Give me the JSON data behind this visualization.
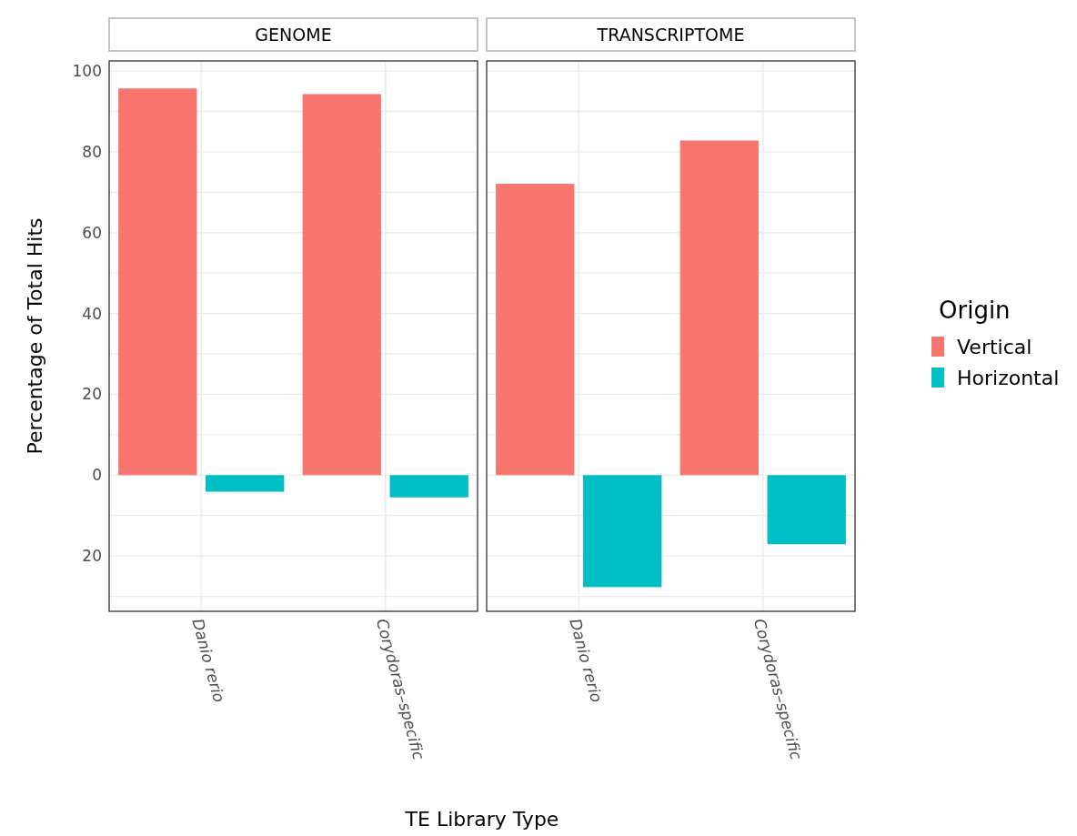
{
  "chart_data": [
    {
      "type": "bar",
      "title": "GENOME",
      "ylabel": "Percentage of Total Hits",
      "xlabel": "TE Library Type",
      "legend_title": "Origin",
      "legend": "right",
      "categories": [
        "Danio rerio",
        "Corydoras–specific"
      ],
      "series": [
        {
          "name": "Vertical",
          "color": "#f8766d",
          "values": [
            95.7,
            94.3
          ]
        },
        {
          "name": "Horizontal",
          "color": "#00bfc4",
          "values": [
            -4.1,
            -5.5
          ]
        }
      ],
      "ylim": [
        -33.7,
        102.5
      ],
      "yticks": [
        {
          "value": -30,
          "label": null
        },
        {
          "value": -20,
          "label": "20"
        },
        {
          "value": -10,
          "label": null
        },
        0,
        {
          "value": 10,
          "label": null
        },
        20,
        {
          "value": 30,
          "label": null
        },
        40,
        {
          "value": 50,
          "label": null
        },
        60,
        {
          "value": 70,
          "label": null
        },
        80,
        {
          "value": 90,
          "label": null
        },
        100
      ],
      "grid": true
    },
    {
      "type": "bar",
      "title": "TRANSCRIPTOME",
      "tick_labels": "x",
      "categories": [
        "Danio rerio",
        "Corydoras–specific"
      ],
      "series": [
        {
          "color": "#f8766d",
          "values": [
            72.1,
            82.8
          ]
        },
        {
          "color": "#00bfc4",
          "values": [
            -27.7,
            -17.1
          ]
        }
      ],
      "ylim": [
        -33.7,
        102.5
      ],
      "yticks": [
        -30,
        -20,
        -10,
        0,
        10,
        20,
        30,
        40,
        50,
        60,
        70,
        80,
        90,
        100
      ],
      "grid": true
    }
  ]
}
